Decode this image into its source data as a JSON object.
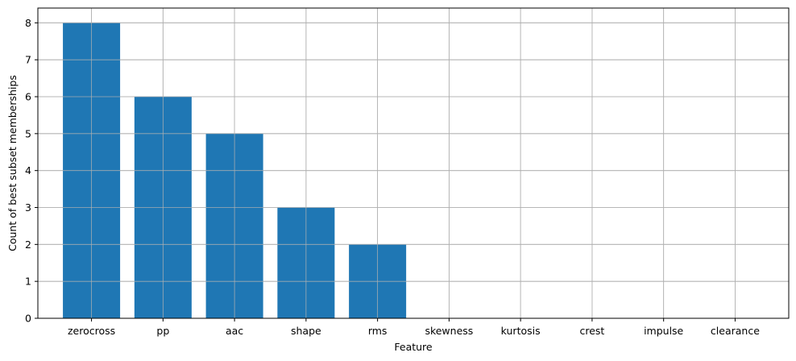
{
  "chart_data": {
    "type": "bar",
    "title": "",
    "xlabel": "Feature",
    "ylabel": "Count of best subset memberships",
    "categories": [
      "zerocross",
      "pp",
      "aac",
      "shape",
      "rms",
      "skewness",
      "kurtosis",
      "crest",
      "impulse",
      "clearance"
    ],
    "values": [
      8,
      6,
      5,
      3,
      2,
      0,
      0,
      0,
      0,
      0
    ],
    "ylim": [
      0,
      8.4
    ],
    "yticks": [
      0,
      1,
      2,
      3,
      4,
      5,
      6,
      7,
      8
    ],
    "grid": true,
    "bar_color": "#1f77b4",
    "grid_color": "#b0b0b0"
  }
}
